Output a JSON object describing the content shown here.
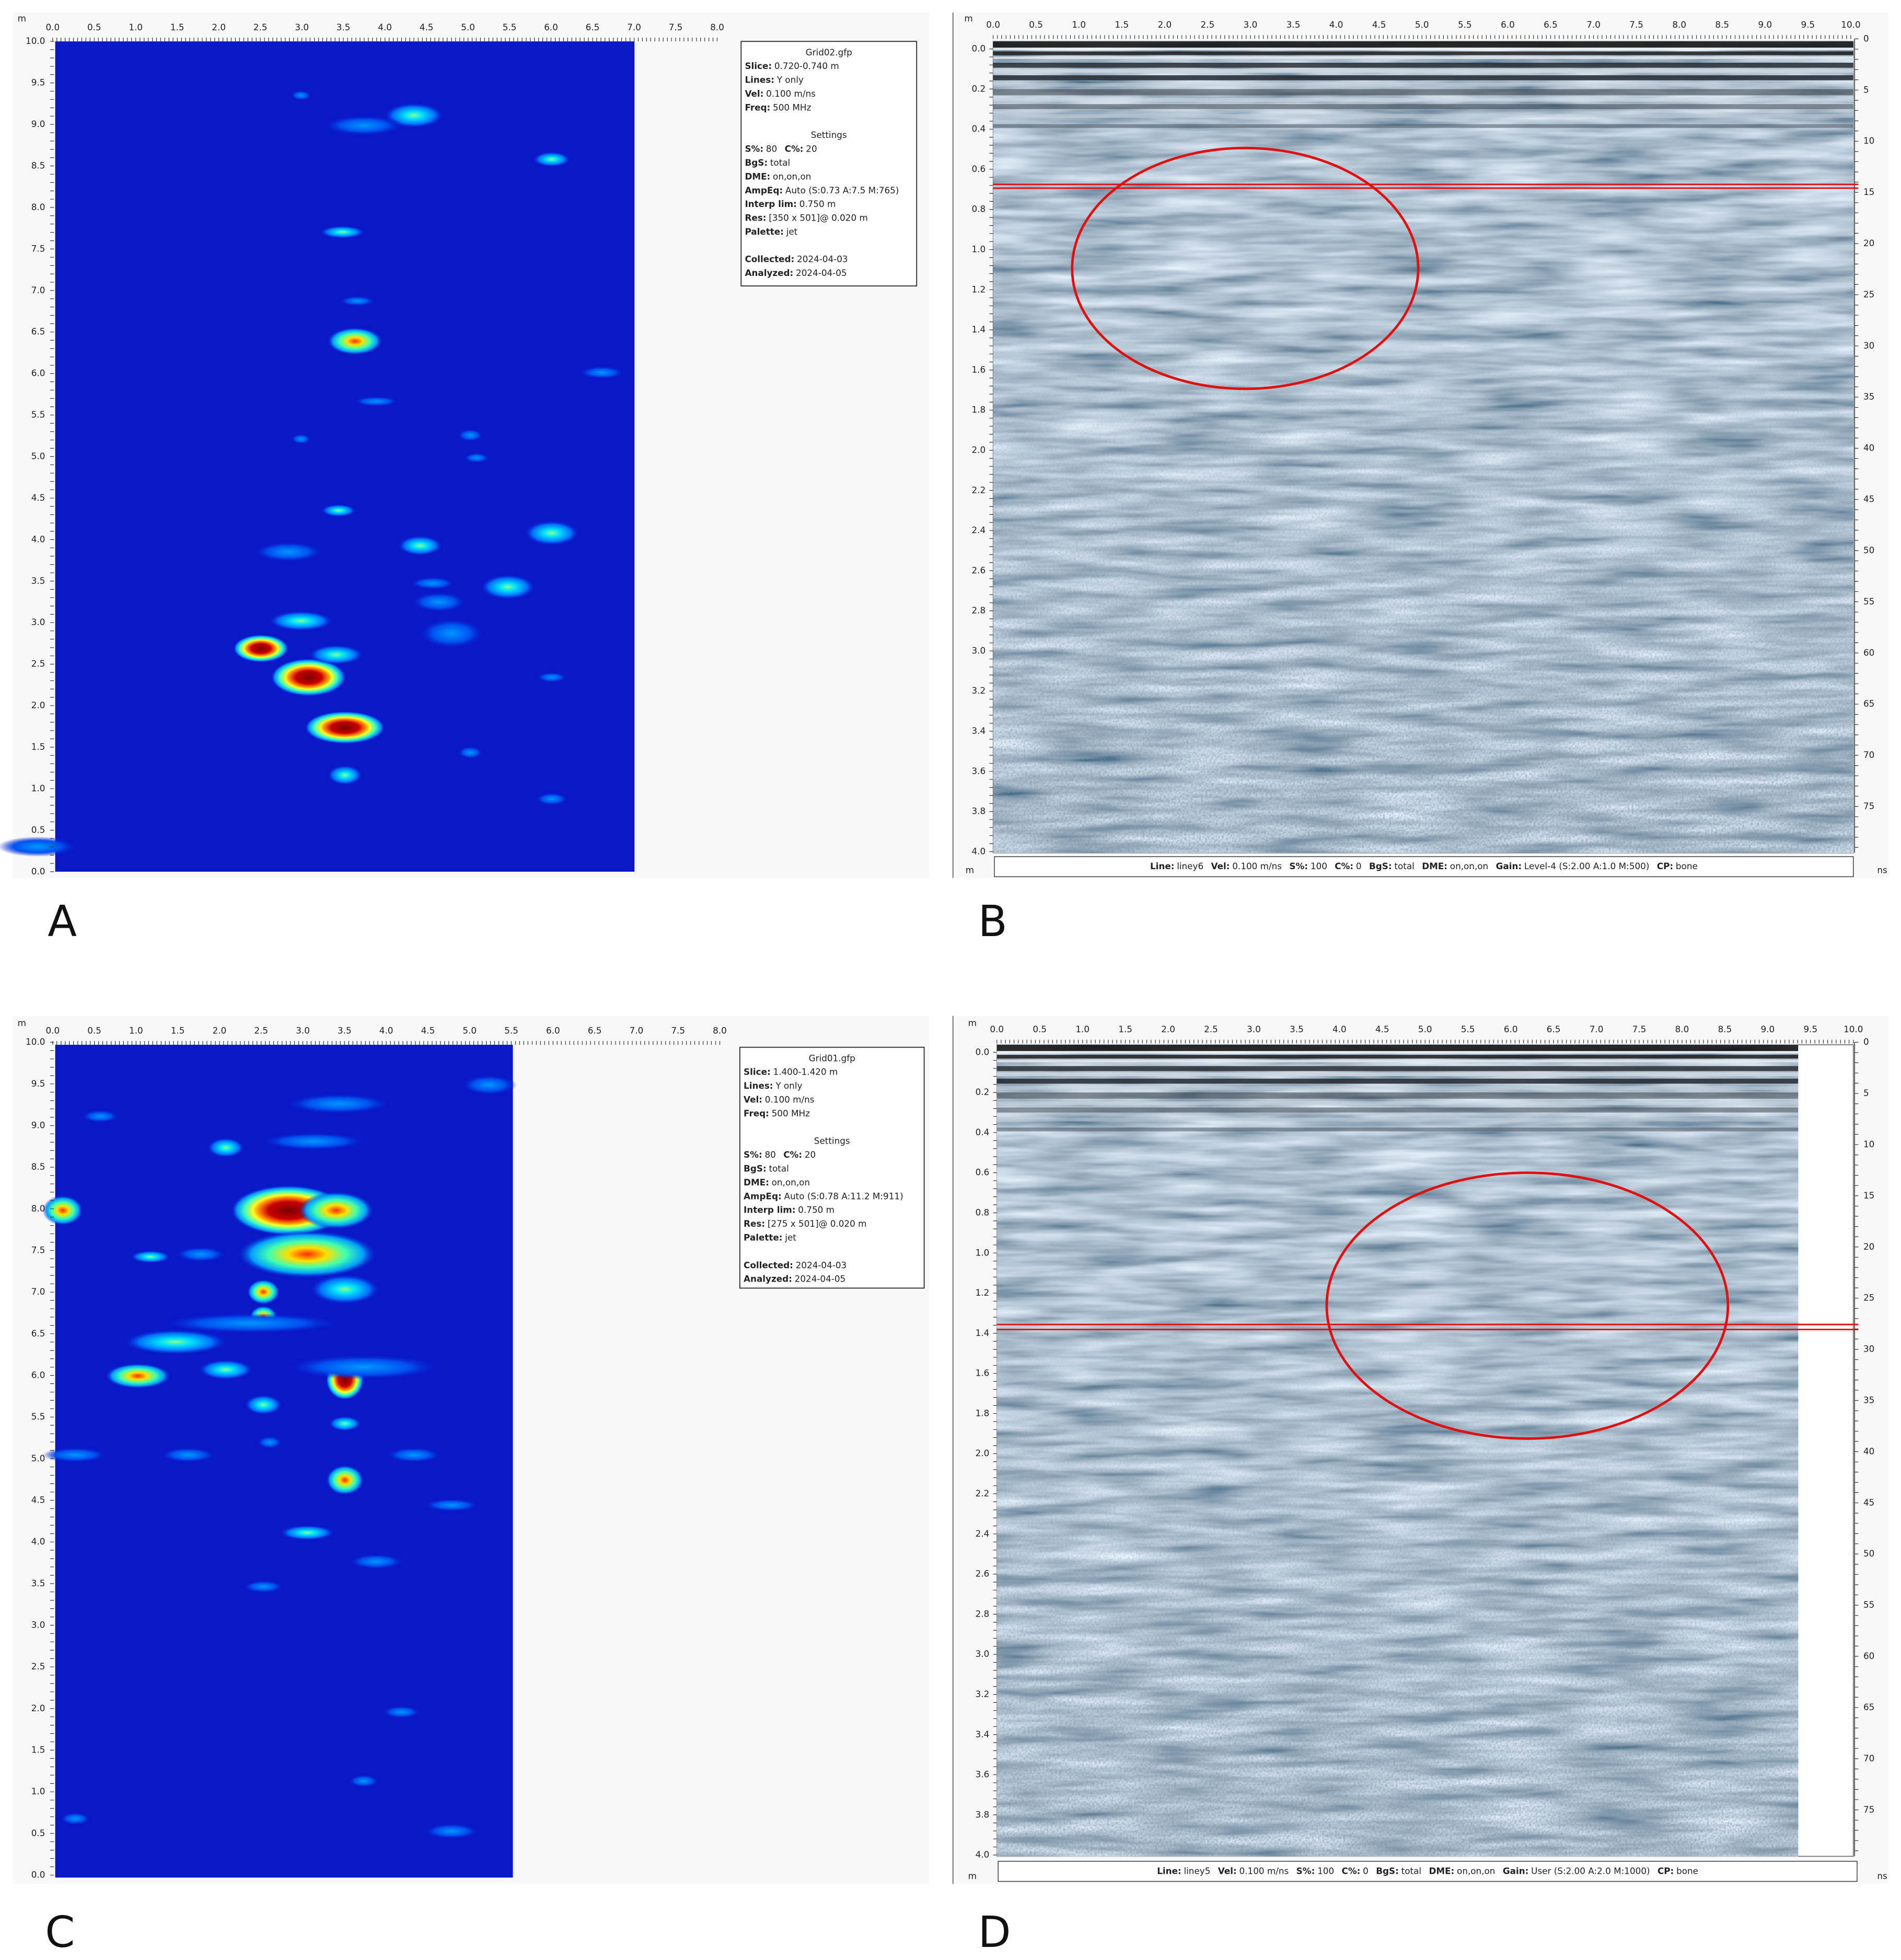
{
  "panels": [
    {
      "letter": "A",
      "unit": "m",
      "x_ticks": [
        "0.0",
        "0.5",
        "1.0",
        "1.5",
        "2.0",
        "2.5",
        "3.0",
        "3.5",
        "4.0",
        "4.5",
        "5.0",
        "5.5",
        "6.0",
        "6.5",
        "7.0",
        "7.5",
        "8.0"
      ],
      "y_ticks": [
        "0.0",
        "0.5",
        "1.0",
        "1.5",
        "2.0",
        "2.5",
        "3.0",
        "3.5",
        "4.0",
        "4.5",
        "5.0",
        "5.5",
        "6.0",
        "6.5",
        "7.0",
        "7.5",
        "8.0",
        "8.5",
        "9.0",
        "9.5",
        "10.0"
      ],
      "info": {
        "file": "Grid02.gfp",
        "survey": [
          [
            {
              "k": "Slice:",
              "v": "0.720-0.740 m"
            }
          ],
          [
            {
              "k": "Lines:",
              "v": "Y only"
            }
          ],
          [
            {
              "k": "Vel:",
              "v": "0.100 m/ns"
            }
          ],
          [
            {
              "k": "Freq:",
              "v": "500 MHz"
            }
          ]
        ],
        "settings_title": "Settings",
        "settings": [
          [
            {
              "k": "S%:",
              "v": "80"
            },
            {
              "k": "C%:",
              "v": "20"
            }
          ],
          [
            {
              "k": "BgS:",
              "v": "total"
            }
          ],
          [
            {
              "k": "DME:",
              "v": "on,on,on"
            }
          ],
          [
            {
              "k": "AmpEq:",
              "v": "Auto (S:0.73 A:7.5 M:765)"
            }
          ],
          [
            {
              "k": "Interp lim:",
              "v": "0.750 m"
            }
          ],
          [
            {
              "k": "Res:",
              "v": "[350 x 501]@ 0.020 m"
            }
          ],
          [
            {
              "k": "Palette:",
              "v": "jet"
            }
          ]
        ],
        "dates": [
          [
            {
              "k": "Collected:",
              "v": "2024-04-03"
            }
          ],
          [
            {
              "k": "Analyzed:",
              "v": "2024-04-05"
            }
          ]
        ]
      }
    },
    {
      "letter": "B",
      "unit_top": "m",
      "unit_bottom": "m",
      "unit_time": "ns",
      "x_ticks": [
        "0.0",
        "0.5",
        "1.0",
        "1.5",
        "2.0",
        "2.5",
        "3.0",
        "3.5",
        "4.0",
        "4.5",
        "5.0",
        "5.5",
        "6.0",
        "6.5",
        "7.0",
        "7.5",
        "8.0",
        "8.5",
        "9.0",
        "9.5",
        "10.0"
      ],
      "depth_ticks": [
        "0.0",
        "0.2",
        "0.4",
        "0.6",
        "0.8",
        "1.0",
        "1.2",
        "1.4",
        "1.6",
        "1.8",
        "2.0",
        "2.2",
        "2.4",
        "2.6",
        "2.8",
        "3.0",
        "3.2",
        "3.4",
        "3.6",
        "3.8",
        "4.0"
      ],
      "time_ticks": [
        "0",
        "5",
        "10",
        "15",
        "20",
        "25",
        "30",
        "35",
        "40",
        "45",
        "50",
        "55",
        "60",
        "65",
        "70",
        "75"
      ],
      "footer": [
        {
          "k": "Line:",
          "v": "liney6"
        },
        {
          "k": "Vel:",
          "v": "0.100 m/ns"
        },
        {
          "k": "S%:",
          "v": "100"
        },
        {
          "k": "C%:",
          "v": "0"
        },
        {
          "k": "BgS:",
          "v": "total"
        },
        {
          "k": "DME:",
          "v": "on,on,on"
        },
        {
          "k": "Gain:",
          "v": "Level-4 (S:2.00 A:1.0 M:500)"
        },
        {
          "k": "CP:",
          "v": "bone"
        }
      ]
    },
    {
      "letter": "C",
      "unit": "m",
      "x_ticks": [
        "0.0",
        "0.5",
        "1.0",
        "1.5",
        "2.0",
        "2.5",
        "3.0",
        "3.5",
        "4.0",
        "4.5",
        "5.0",
        "5.5",
        "6.0",
        "6.5",
        "7.0",
        "7.5",
        "8.0"
      ],
      "y_ticks": [
        "0.0",
        "0.5",
        "1.0",
        "1.5",
        "2.0",
        "2.5",
        "3.0",
        "3.5",
        "4.0",
        "4.5",
        "5.0",
        "5.5",
        "6.0",
        "6.5",
        "7.0",
        "7.5",
        "8.0",
        "8.5",
        "9.0",
        "9.5",
        "10.0"
      ],
      "info": {
        "file": "Grid01.gfp",
        "survey": [
          [
            {
              "k": "Slice:",
              "v": "1.400-1.420 m"
            }
          ],
          [
            {
              "k": "Lines:",
              "v": "Y only"
            }
          ],
          [
            {
              "k": "Vel:",
              "v": "0.100 m/ns"
            }
          ],
          [
            {
              "k": "Freq:",
              "v": "500 MHz"
            }
          ]
        ],
        "settings_title": "Settings",
        "settings": [
          [
            {
              "k": "S%:",
              "v": "80"
            },
            {
              "k": "C%:",
              "v": "20"
            }
          ],
          [
            {
              "k": "BgS:",
              "v": "total"
            }
          ],
          [
            {
              "k": "DME:",
              "v": "on,on,on"
            }
          ],
          [
            {
              "k": "AmpEq:",
              "v": "Auto (S:0.78 A:11.2 M:911)"
            }
          ],
          [
            {
              "k": "Interp lim:",
              "v": "0.750 m"
            }
          ],
          [
            {
              "k": "Res:",
              "v": "[275 x 501]@ 0.020 m"
            }
          ],
          [
            {
              "k": "Palette:",
              "v": "jet"
            }
          ]
        ],
        "dates": [
          [
            {
              "k": "Collected:",
              "v": "2024-04-03"
            }
          ],
          [
            {
              "k": "Analyzed:",
              "v": "2024-04-05"
            }
          ]
        ]
      }
    },
    {
      "letter": "D",
      "unit_top": "m",
      "unit_bottom": "m",
      "unit_time": "ns",
      "x_ticks": [
        "0.0",
        "0.5",
        "1.0",
        "1.5",
        "2.0",
        "2.5",
        "3.0",
        "3.5",
        "4.0",
        "4.5",
        "5.0",
        "5.5",
        "6.0",
        "6.5",
        "7.0",
        "7.5",
        "8.0",
        "8.5",
        "9.0",
        "9.5",
        "10.0"
      ],
      "depth_ticks": [
        "0.0",
        "0.2",
        "0.4",
        "0.6",
        "0.8",
        "1.0",
        "1.2",
        "1.4",
        "1.6",
        "1.8",
        "2.0",
        "2.2",
        "2.4",
        "2.6",
        "2.8",
        "3.0",
        "3.2",
        "3.4",
        "3.6",
        "3.8",
        "4.0"
      ],
      "time_ticks": [
        "0",
        "5",
        "10",
        "15",
        "20",
        "25",
        "30",
        "35",
        "40",
        "45",
        "50",
        "55",
        "60",
        "65",
        "70",
        "75"
      ],
      "footer": [
        {
          "k": "Line:",
          "v": "liney5"
        },
        {
          "k": "Vel:",
          "v": "0.100 m/ns"
        },
        {
          "k": "S%:",
          "v": "100"
        },
        {
          "k": "C%:",
          "v": "0"
        },
        {
          "k": "BgS:",
          "v": "total"
        },
        {
          "k": "DME:",
          "v": "on,on,on"
        },
        {
          "k": "Gain:",
          "v": "User (S:2.00 A:2.0 M:1000)"
        },
        {
          "k": "CP:",
          "v": "bone"
        }
      ]
    }
  ]
}
